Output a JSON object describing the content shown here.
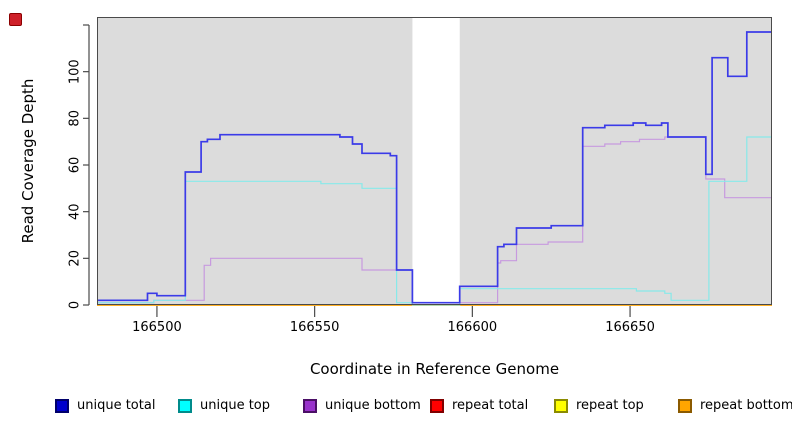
{
  "window": {
    "red_marker": "red-square-indicator"
  },
  "chart_data": {
    "type": "line",
    "step": true,
    "title": "",
    "xlabel": "Coordinate in Reference Genome",
    "ylabel": "Read Coverage Depth",
    "xlim": [
      166481,
      166695
    ],
    "ylim": [
      0,
      120
    ],
    "x_ticks": [
      166500,
      166550,
      166600,
      166650
    ],
    "x_tick_labels": [
      "166500",
      "166550",
      "166600",
      "166650"
    ],
    "y_ticks": [
      0,
      20,
      40,
      60,
      80,
      100,
      120
    ],
    "y_tick_labels": [
      "0",
      "20",
      "40",
      "60",
      "80",
      "100",
      ""
    ],
    "grid": false,
    "plot_background": "#DCDCDC",
    "gap_region": {
      "x_start": 166581,
      "x_end": 166596,
      "fill": "#FFFFFF"
    },
    "legend_position": "bottom",
    "series": [
      {
        "name": "unique total",
        "z": 6,
        "line_color": "#3B3BE8",
        "line_width": 1.7,
        "legend_fill": "#0000CD",
        "legend_border": "#00006B",
        "points": [
          [
            166481,
            2
          ],
          [
            166497,
            5
          ],
          [
            166500,
            4
          ],
          [
            166509,
            57
          ],
          [
            166514,
            70
          ],
          [
            166516,
            71
          ],
          [
            166520,
            73
          ],
          [
            166558,
            72
          ],
          [
            166562,
            69
          ],
          [
            166565,
            65
          ],
          [
            166574,
            64
          ],
          [
            166576,
            15
          ],
          [
            166581,
            1
          ],
          [
            166596,
            8
          ],
          [
            166608,
            25
          ],
          [
            166610,
            26
          ],
          [
            166614,
            33
          ],
          [
            166625,
            34
          ],
          [
            166635,
            76
          ],
          [
            166642,
            77
          ],
          [
            166651,
            78
          ],
          [
            166655,
            77
          ],
          [
            166660,
            78
          ],
          [
            166662,
            72
          ],
          [
            166674,
            56
          ],
          [
            166676,
            106
          ],
          [
            166681,
            98
          ],
          [
            166687,
            117
          ]
        ]
      },
      {
        "name": "unique top",
        "z": 5,
        "line_color": "#87E9E9",
        "line_width": 1.2,
        "legend_fill": "#00FFFF",
        "legend_border": "#008B8B",
        "points": [
          [
            166481,
            1
          ],
          [
            166499,
            2
          ],
          [
            166509,
            53
          ],
          [
            166552,
            52
          ],
          [
            166565,
            50
          ],
          [
            166576,
            1
          ],
          [
            166581,
            0
          ],
          [
            166596,
            7
          ],
          [
            166652,
            6
          ],
          [
            166661,
            5
          ],
          [
            166663,
            2
          ],
          [
            166675,
            53
          ],
          [
            166687,
            72
          ]
        ]
      },
      {
        "name": "unique bottom",
        "z": 4,
        "line_color": "#C79ADF",
        "line_width": 1.2,
        "legend_fill": "#9932CC",
        "legend_border": "#4B0F66",
        "points": [
          [
            166481,
            1
          ],
          [
            166499,
            2
          ],
          [
            166515,
            17
          ],
          [
            166517,
            20
          ],
          [
            166565,
            15
          ],
          [
            166581,
            1
          ],
          [
            166608,
            18
          ],
          [
            166609,
            19
          ],
          [
            166614,
            26
          ],
          [
            166624,
            27
          ],
          [
            166635,
            68
          ],
          [
            166642,
            69
          ],
          [
            166647,
            70
          ],
          [
            166653,
            71
          ],
          [
            166661,
            72
          ],
          [
            166674,
            54
          ],
          [
            166680,
            46
          ]
        ]
      },
      {
        "name": "repeat total",
        "z": 1,
        "line_color": "#FF0000",
        "line_width": 1.2,
        "legend_fill": "#FF0000",
        "legend_border": "#800000",
        "points": [
          [
            166481,
            0
          ]
        ]
      },
      {
        "name": "repeat top",
        "z": 2,
        "line_color": "#FFFF00",
        "line_width": 1.2,
        "legend_fill": "#FFFF00",
        "legend_border": "#8B8B00",
        "points": [
          [
            166481,
            0
          ]
        ]
      },
      {
        "name": "repeat bottom",
        "z": 3,
        "line_color": "#FFA500",
        "line_width": 1.5,
        "legend_fill": "#FFA500",
        "legend_border": "#8B5A00",
        "points": [
          [
            166481,
            0
          ]
        ]
      }
    ]
  }
}
